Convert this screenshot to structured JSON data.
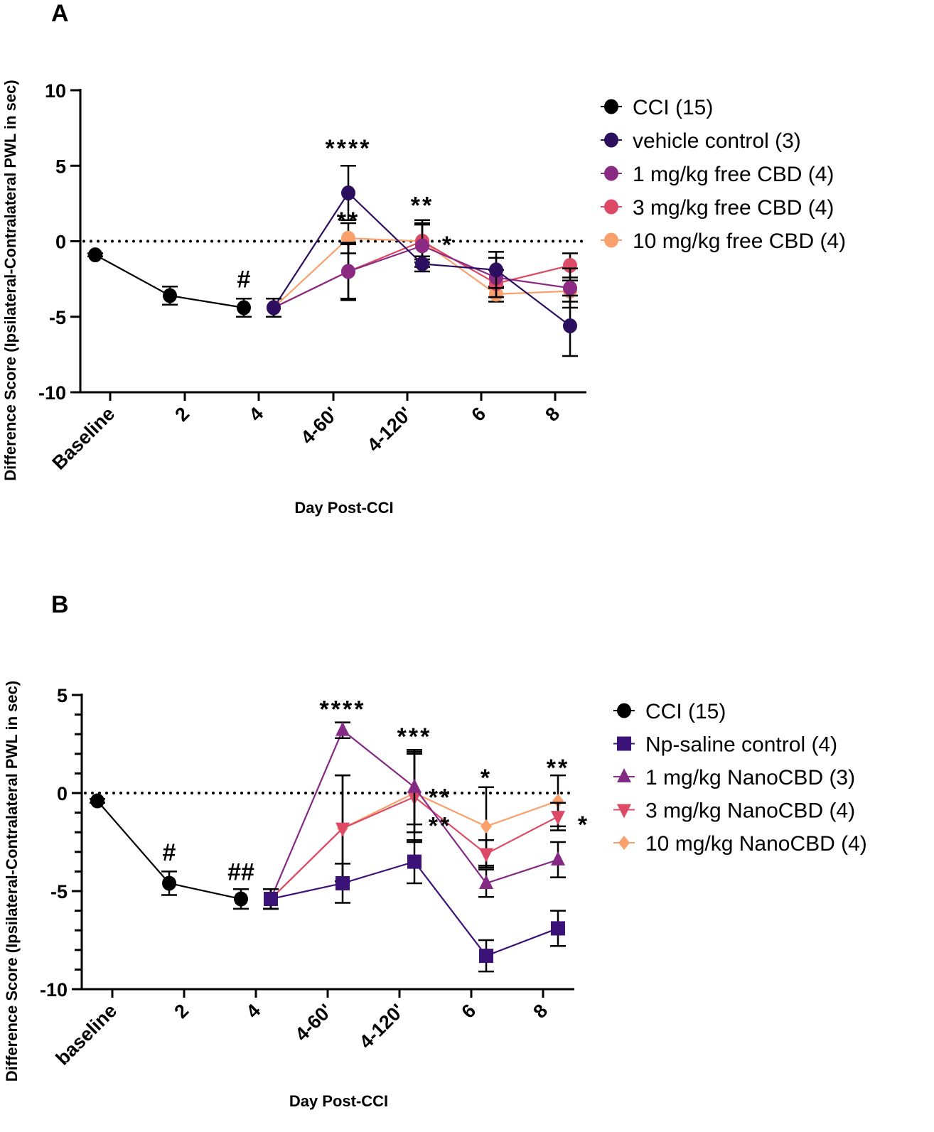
{
  "chart_data": [
    {
      "type": "line",
      "panel_label": "A",
      "xlabel": "Day Post-CCI",
      "ylabel": "Difference Score (Ipsilateral-Contralateral PWL in sec)",
      "categories": [
        "Baseline",
        "2",
        "4",
        "4-60'",
        "4-120'",
        "6",
        "8"
      ],
      "ylim": [
        -10,
        10
      ],
      "yticks": [
        10,
        5,
        0,
        -5,
        -10
      ],
      "reference_line": 0,
      "legend_position": "right",
      "series": [
        {
          "name": "CCI (15)",
          "color": "#000000",
          "marker": "circle",
          "values": [
            -0.9,
            -3.6,
            -4.4,
            null,
            null,
            null,
            null
          ],
          "errors": [
            0.1,
            0.6,
            0.6,
            null,
            null,
            null,
            null
          ]
        },
        {
          "name": "vehicle control (3)",
          "color": "#2c0f5e",
          "marker": "circle",
          "values": [
            null,
            null,
            -4.4,
            3.2,
            -1.5,
            -1.9,
            -5.6
          ],
          "errors": [
            null,
            null,
            0.6,
            1.8,
            0.5,
            1.2,
            2.0
          ]
        },
        {
          "name": "1 mg/kg free CBD (4)",
          "color": "#8a2a82",
          "marker": "circle",
          "values": [
            null,
            null,
            -4.4,
            -2.0,
            -0.3,
            -2.4,
            -3.1
          ],
          "errors": [
            null,
            null,
            0.6,
            1.9,
            1.4,
            1.3,
            1.3
          ]
        },
        {
          "name": "3 mg/kg free CBD (4)",
          "color": "#dc4a66",
          "marker": "circle",
          "values": [
            null,
            null,
            -4.4,
            -2.0,
            0.0,
            -2.8,
            -1.6
          ],
          "errors": [
            null,
            null,
            0.6,
            1.8,
            1.4,
            0.9,
            0.8
          ]
        },
        {
          "name": "10 mg/kg free CBD (4)",
          "color": "#f9a06c",
          "marker": "circle",
          "values": [
            null,
            null,
            -4.4,
            0.2,
            0.0,
            -3.5,
            -3.3
          ],
          "errors": [
            null,
            null,
            0.6,
            1.0,
            1.2,
            0.5,
            0.7
          ]
        }
      ],
      "annotations": [
        {
          "text": "#",
          "category": "4",
          "y": -2.5
        },
        {
          "text": "****",
          "category": "4-60'",
          "y": 6.2
        },
        {
          "text": "**",
          "category": "4-60'",
          "y": 1.4
        },
        {
          "text": "**",
          "category": "4-120'",
          "y": 2.4
        },
        {
          "text": "*",
          "category": "4-120'",
          "y": -0.2,
          "offset": "right"
        }
      ]
    },
    {
      "type": "line",
      "panel_label": "B",
      "xlabel": "Day Post-CCI",
      "ylabel": "Difference Score (Ipsilateral-Contralateral PWL in sec)",
      "categories": [
        "baseline",
        "2",
        "4",
        "4-60'",
        "4-120'",
        "6",
        "8"
      ],
      "ylim": [
        -10,
        5
      ],
      "yticks": [
        5,
        0,
        -5,
        -10
      ],
      "reference_line": 0,
      "legend_position": "right",
      "series": [
        {
          "name": "CCI (15)",
          "color": "#000000",
          "marker": "circle",
          "values": [
            -0.4,
            -4.6,
            -5.4,
            null,
            null,
            null,
            null
          ],
          "errors": [
            0.1,
            0.6,
            0.5,
            null,
            null,
            null,
            null
          ]
        },
        {
          "name": "Np-saline control (4)",
          "color": "#3b1278",
          "marker": "square",
          "values": [
            null,
            null,
            -5.4,
            -4.6,
            -3.5,
            -8.3,
            -6.9
          ],
          "errors": [
            null,
            null,
            0.5,
            1.0,
            1.1,
            0.8,
            0.9
          ]
        },
        {
          "name": "1 mg/kg NanoCBD (3)",
          "color": "#842a84",
          "marker": "triangle-up",
          "values": [
            null,
            null,
            -5.4,
            3.2,
            0.3,
            -4.6,
            -3.4
          ],
          "errors": [
            null,
            null,
            0.5,
            0.4,
            1.9,
            0.7,
            0.9
          ]
        },
        {
          "name": "3 mg/kg NanoCBD (4)",
          "color": "#dc4a66",
          "marker": "triangle-down",
          "values": [
            null,
            null,
            -5.4,
            -1.8,
            -0.2,
            -3.1,
            -1.2
          ],
          "errors": [
            null,
            null,
            0.5,
            2.7,
            2.3,
            0.7,
            0.7
          ]
        },
        {
          "name": "10 mg/kg NanoCBD (4)",
          "color": "#f9a06c",
          "marker": "diamond",
          "values": [
            null,
            null,
            -5.4,
            -1.8,
            0.0,
            -1.7,
            -0.4
          ],
          "errors": [
            null,
            null,
            0.5,
            2.7,
            2.0,
            2.0,
            1.3
          ]
        }
      ],
      "annotations": [
        {
          "text": "#",
          "category": "2",
          "y": -3.0
        },
        {
          "text": "##",
          "category": "4",
          "y": -4.0
        },
        {
          "text": "****",
          "category": "4-60'",
          "y": 4.3
        },
        {
          "text": "***",
          "category": "4-120'",
          "y": 2.9
        },
        {
          "text": "**",
          "category": "4-120'",
          "y": -0.2,
          "offset": "right"
        },
        {
          "text": "**",
          "category": "4-120'",
          "y": -1.1,
          "offset": "right"
        },
        {
          "text": "*",
          "category": "6",
          "y": 0.8
        },
        {
          "text": "**",
          "category": "8",
          "y": 1.3
        },
        {
          "text": "*",
          "category": "8",
          "y": -1.6,
          "offset": "right"
        }
      ]
    }
  ]
}
